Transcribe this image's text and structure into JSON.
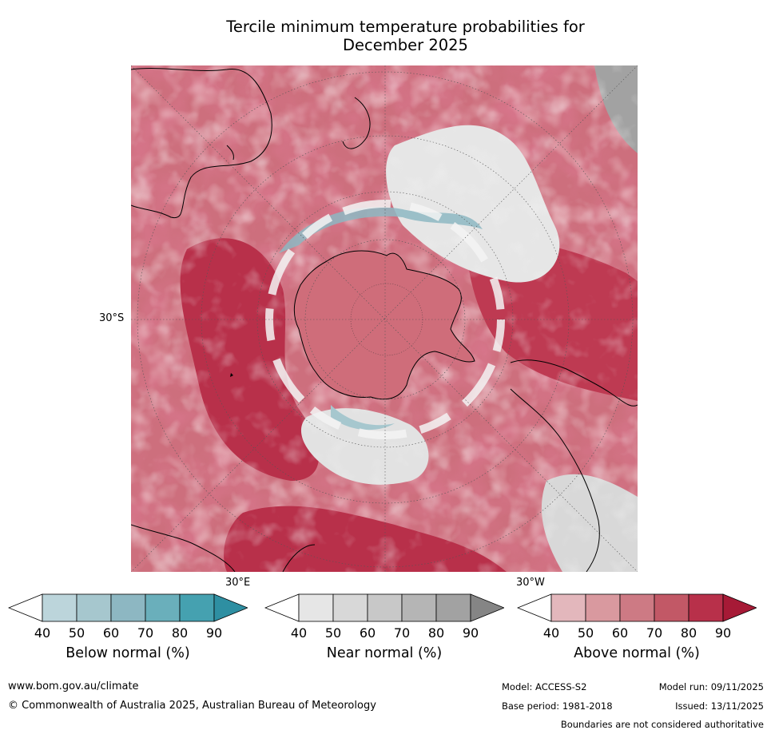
{
  "title": {
    "line1": "Tercile minimum temperature probabilities for",
    "line2": "December 2025"
  },
  "map": {
    "lat_label": "30°S",
    "lon_label_east": "30°E",
    "lon_label_west": "30°W",
    "projection_center": "South Pole"
  },
  "colorbars": [
    {
      "name": "Below normal (%)",
      "ticks": [
        "40",
        "50",
        "60",
        "70",
        "80",
        "90"
      ],
      "colors": [
        "#ffffff",
        "#bcd5db",
        "#a6c7ce",
        "#8db7c2",
        "#6aafbb",
        "#45a1b0",
        "#2e8fa2"
      ]
    },
    {
      "name": "Near normal (%)",
      "ticks": [
        "40",
        "50",
        "60",
        "70",
        "80",
        "90"
      ],
      "colors": [
        "#ffffff",
        "#e6e6e6",
        "#d8d8d8",
        "#c8c8c8",
        "#b5b5b5",
        "#a2a2a2",
        "#858585"
      ]
    },
    {
      "name": "Above normal (%)",
      "ticks": [
        "40",
        "50",
        "60",
        "70",
        "80",
        "90"
      ],
      "colors": [
        "#ffffff",
        "#e3b7bc",
        "#d9999f",
        "#cd7a84",
        "#c25866",
        "#b8304a",
        "#a61a36"
      ]
    }
  ],
  "footer": {
    "url": "www.bom.gov.au/climate",
    "copyright": "© Commonwealth of Australia 2025, Australian Bureau of Meteorology",
    "model": "Model: ACCESS-S2",
    "model_run": "Model run: 09/11/2025",
    "base_period": "Base period: 1981-2018",
    "issued": "Issued: 13/11/2025",
    "disclaimer": "Boundaries are not considered authoritative"
  }
}
